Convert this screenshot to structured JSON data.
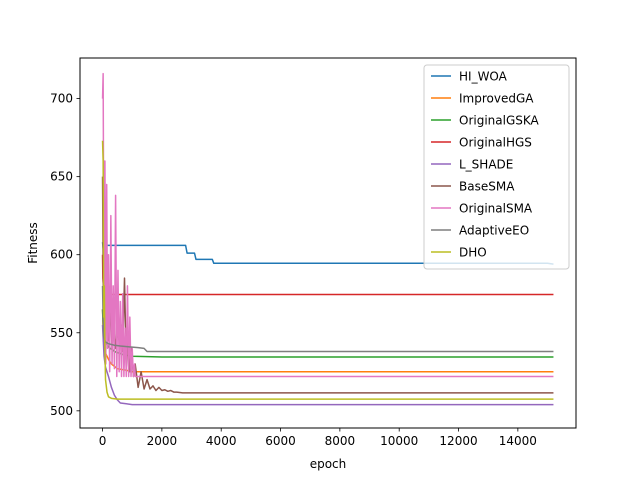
{
  "chart_data": {
    "type": "line",
    "title": "",
    "xlabel": "epoch",
    "ylabel": "Fitness",
    "xlim": [
      -760,
      15960
    ],
    "ylim": [
      489,
      726
    ],
    "xticks": [
      0,
      2000,
      4000,
      6000,
      8000,
      10000,
      12000,
      14000
    ],
    "xtick_labels": [
      "0",
      "2000",
      "4000",
      "6000",
      "8000",
      "10000",
      "12000",
      "14000"
    ],
    "yticks": [
      500,
      550,
      600,
      650,
      700
    ],
    "ytick_labels": [
      "500",
      "550",
      "600",
      "650",
      "700"
    ],
    "grid": false,
    "legend_position": "top-right",
    "series": [
      {
        "name": "HI_WOA",
        "color": "#1f77b4",
        "x": [
          0,
          20,
          50,
          100,
          200,
          300,
          2800,
          2850,
          3100,
          3150,
          3700,
          3750,
          15000,
          15200
        ],
        "y": [
          608,
          604,
          604,
          606,
          606,
          606,
          606,
          601,
          601,
          597,
          597,
          594.5,
          594.5,
          594
        ]
      },
      {
        "name": "ImprovedGA",
        "color": "#ff7f0e",
        "x": [
          0,
          30,
          100,
          200,
          300,
          500,
          800,
          1000,
          2000,
          15200
        ],
        "y": [
          565,
          545,
          537,
          533,
          530,
          527,
          526,
          525,
          525,
          525
        ]
      },
      {
        "name": "OriginalGSKA",
        "color": "#2ca02c",
        "x": [
          0,
          30,
          100,
          200,
          400,
          700,
          1000,
          2000,
          15200
        ],
        "y": [
          565,
          550,
          545,
          541,
          538,
          536,
          535,
          534.5,
          534.5
        ]
      },
      {
        "name": "OriginalHGS",
        "color": "#d62728",
        "x": [
          0,
          10,
          30,
          60,
          100,
          200,
          15200
        ],
        "y": [
          600,
          585,
          580,
          576,
          575,
          574.5,
          574.5
        ]
      },
      {
        "name": "L_SHADE",
        "color": "#9467bd",
        "x": [
          0,
          50,
          100,
          200,
          300,
          400,
          500,
          600,
          800,
          1000,
          2000,
          15200
        ],
        "y": [
          555,
          535,
          528,
          522,
          515,
          510,
          507,
          505,
          504.5,
          504,
          504,
          504
        ]
      },
      {
        "name": "BaseSMA",
        "color": "#8c564b",
        "x": [
          0,
          30,
          60,
          100,
          150,
          200,
          260,
          320,
          380,
          440,
          500,
          560,
          620,
          680,
          740,
          800,
          860,
          920,
          980,
          1040,
          1100,
          1200,
          1300,
          1400,
          1500,
          1600,
          1700,
          1800,
          1900,
          2000,
          2100,
          2200,
          2300,
          2400,
          2500,
          2700,
          15200
        ],
        "y": [
          650,
          560,
          600,
          540,
          580,
          545,
          575,
          540,
          560,
          540,
          550,
          545,
          555,
          538,
          585,
          528,
          548,
          525,
          540,
          522,
          530,
          515,
          525,
          514,
          520,
          514,
          516,
          513,
          515,
          513,
          513.5,
          512.5,
          513,
          512,
          512,
          511.5,
          511.5
        ]
      },
      {
        "name": "OriginalSMA",
        "color": "#e377c2",
        "x": [
          0,
          20,
          50,
          80,
          110,
          140,
          170,
          200,
          240,
          280,
          320,
          360,
          400,
          440,
          480,
          520,
          560,
          600,
          640,
          680,
          720,
          760,
          800,
          840,
          880,
          920,
          960,
          1000,
          1040,
          1080,
          1100,
          1300,
          15200
        ],
        "y": [
          700,
          716,
          560,
          660,
          530,
          645,
          540,
          600,
          525,
          625,
          530,
          580,
          527,
          638,
          522,
          590,
          525,
          570,
          522,
          575,
          522,
          553,
          522,
          580,
          522,
          560,
          522,
          540,
          522,
          530,
          522,
          522,
          522
        ]
      },
      {
        "name": "AdaptiveEO",
        "color": "#7f7f7f",
        "x": [
          0,
          30,
          100,
          200,
          400,
          600,
          900,
          1200,
          1400,
          1500,
          2000,
          15200
        ],
        "y": [
          580,
          548,
          544,
          543,
          542,
          541.5,
          541,
          540.5,
          540,
          538,
          538,
          538
        ]
      },
      {
        "name": "DHO",
        "color": "#bcbd22",
        "x": [
          0,
          20,
          40,
          60,
          80,
          100,
          150,
          200,
          300,
          500,
          800,
          1500,
          15200
        ],
        "y": [
          673,
          660,
          560,
          580,
          540,
          520,
          512,
          509,
          508,
          507.5,
          507.5,
          507.5,
          507.5
        ]
      }
    ]
  }
}
